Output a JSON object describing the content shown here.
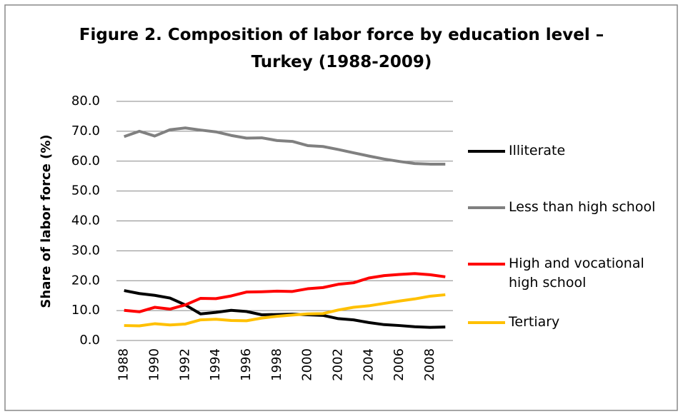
{
  "chart_data": {
    "type": "line",
    "title": "Figure 2. Composition of labor force by education level – Turkey (1988-2009)",
    "y_label": "Share of labor force (%)",
    "categories": [
      "1988",
      null,
      "1990",
      null,
      "1992",
      null,
      "1994",
      null,
      "1996",
      null,
      "1998",
      null,
      "2000",
      null,
      "2002",
      null,
      "2004",
      null,
      "2006",
      null,
      "2008",
      null
    ],
    "series": [
      {
        "name": "Illiterate",
        "color": "#000000",
        "values": [
          16.7,
          15.7,
          15.1,
          14.2,
          11.9,
          8.9,
          9.4,
          10.1,
          9.7,
          8.6,
          8.7,
          8.8,
          8.6,
          8.4,
          7.3,
          6.9,
          6.0,
          5.3,
          5.0,
          4.6,
          4.4,
          4.5
        ]
      },
      {
        "name": "Less than high school",
        "color": "#808080",
        "values": [
          68.2,
          70.0,
          68.4,
          70.5,
          71.1,
          70.4,
          69.8,
          68.6,
          67.7,
          67.8,
          66.9,
          66.6,
          65.2,
          64.9,
          63.9,
          62.8,
          61.7,
          60.7,
          59.9,
          59.2,
          59.0,
          59.0
        ]
      },
      {
        "name": "High and vocational high school",
        "color": "#ff0000",
        "values": [
          10.1,
          9.6,
          11.1,
          10.5,
          11.9,
          14.1,
          14.0,
          14.9,
          16.2,
          16.3,
          16.5,
          16.4,
          17.3,
          17.7,
          18.8,
          19.3,
          20.9,
          21.7,
          22.1,
          22.4,
          22.0,
          21.3
        ]
      },
      {
        "name": "Tertiary",
        "color": "#ffc000",
        "values": [
          5.0,
          4.9,
          5.6,
          5.2,
          5.5,
          6.9,
          7.1,
          6.7,
          6.6,
          7.5,
          8.1,
          8.5,
          8.9,
          9.0,
          10.2,
          11.1,
          11.6,
          12.4,
          13.2,
          13.9,
          14.8,
          15.3
        ]
      }
    ],
    "ylim": [
      0,
      80
    ],
    "yticks": [
      {
        "value": 0,
        "label": "0.0"
      },
      {
        "value": 10,
        "label": "10.0"
      },
      {
        "value": 20,
        "label": "20.0"
      },
      {
        "value": 30,
        "label": "30.0"
      },
      {
        "value": 40,
        "label": "40.0"
      },
      {
        "value": 50,
        "label": "50.0"
      },
      {
        "value": 60,
        "label": "60.0"
      },
      {
        "value": 70,
        "label": "70.0"
      },
      {
        "value": 80,
        "label": "80.0"
      }
    ],
    "grid": true,
    "legend": "right"
  }
}
